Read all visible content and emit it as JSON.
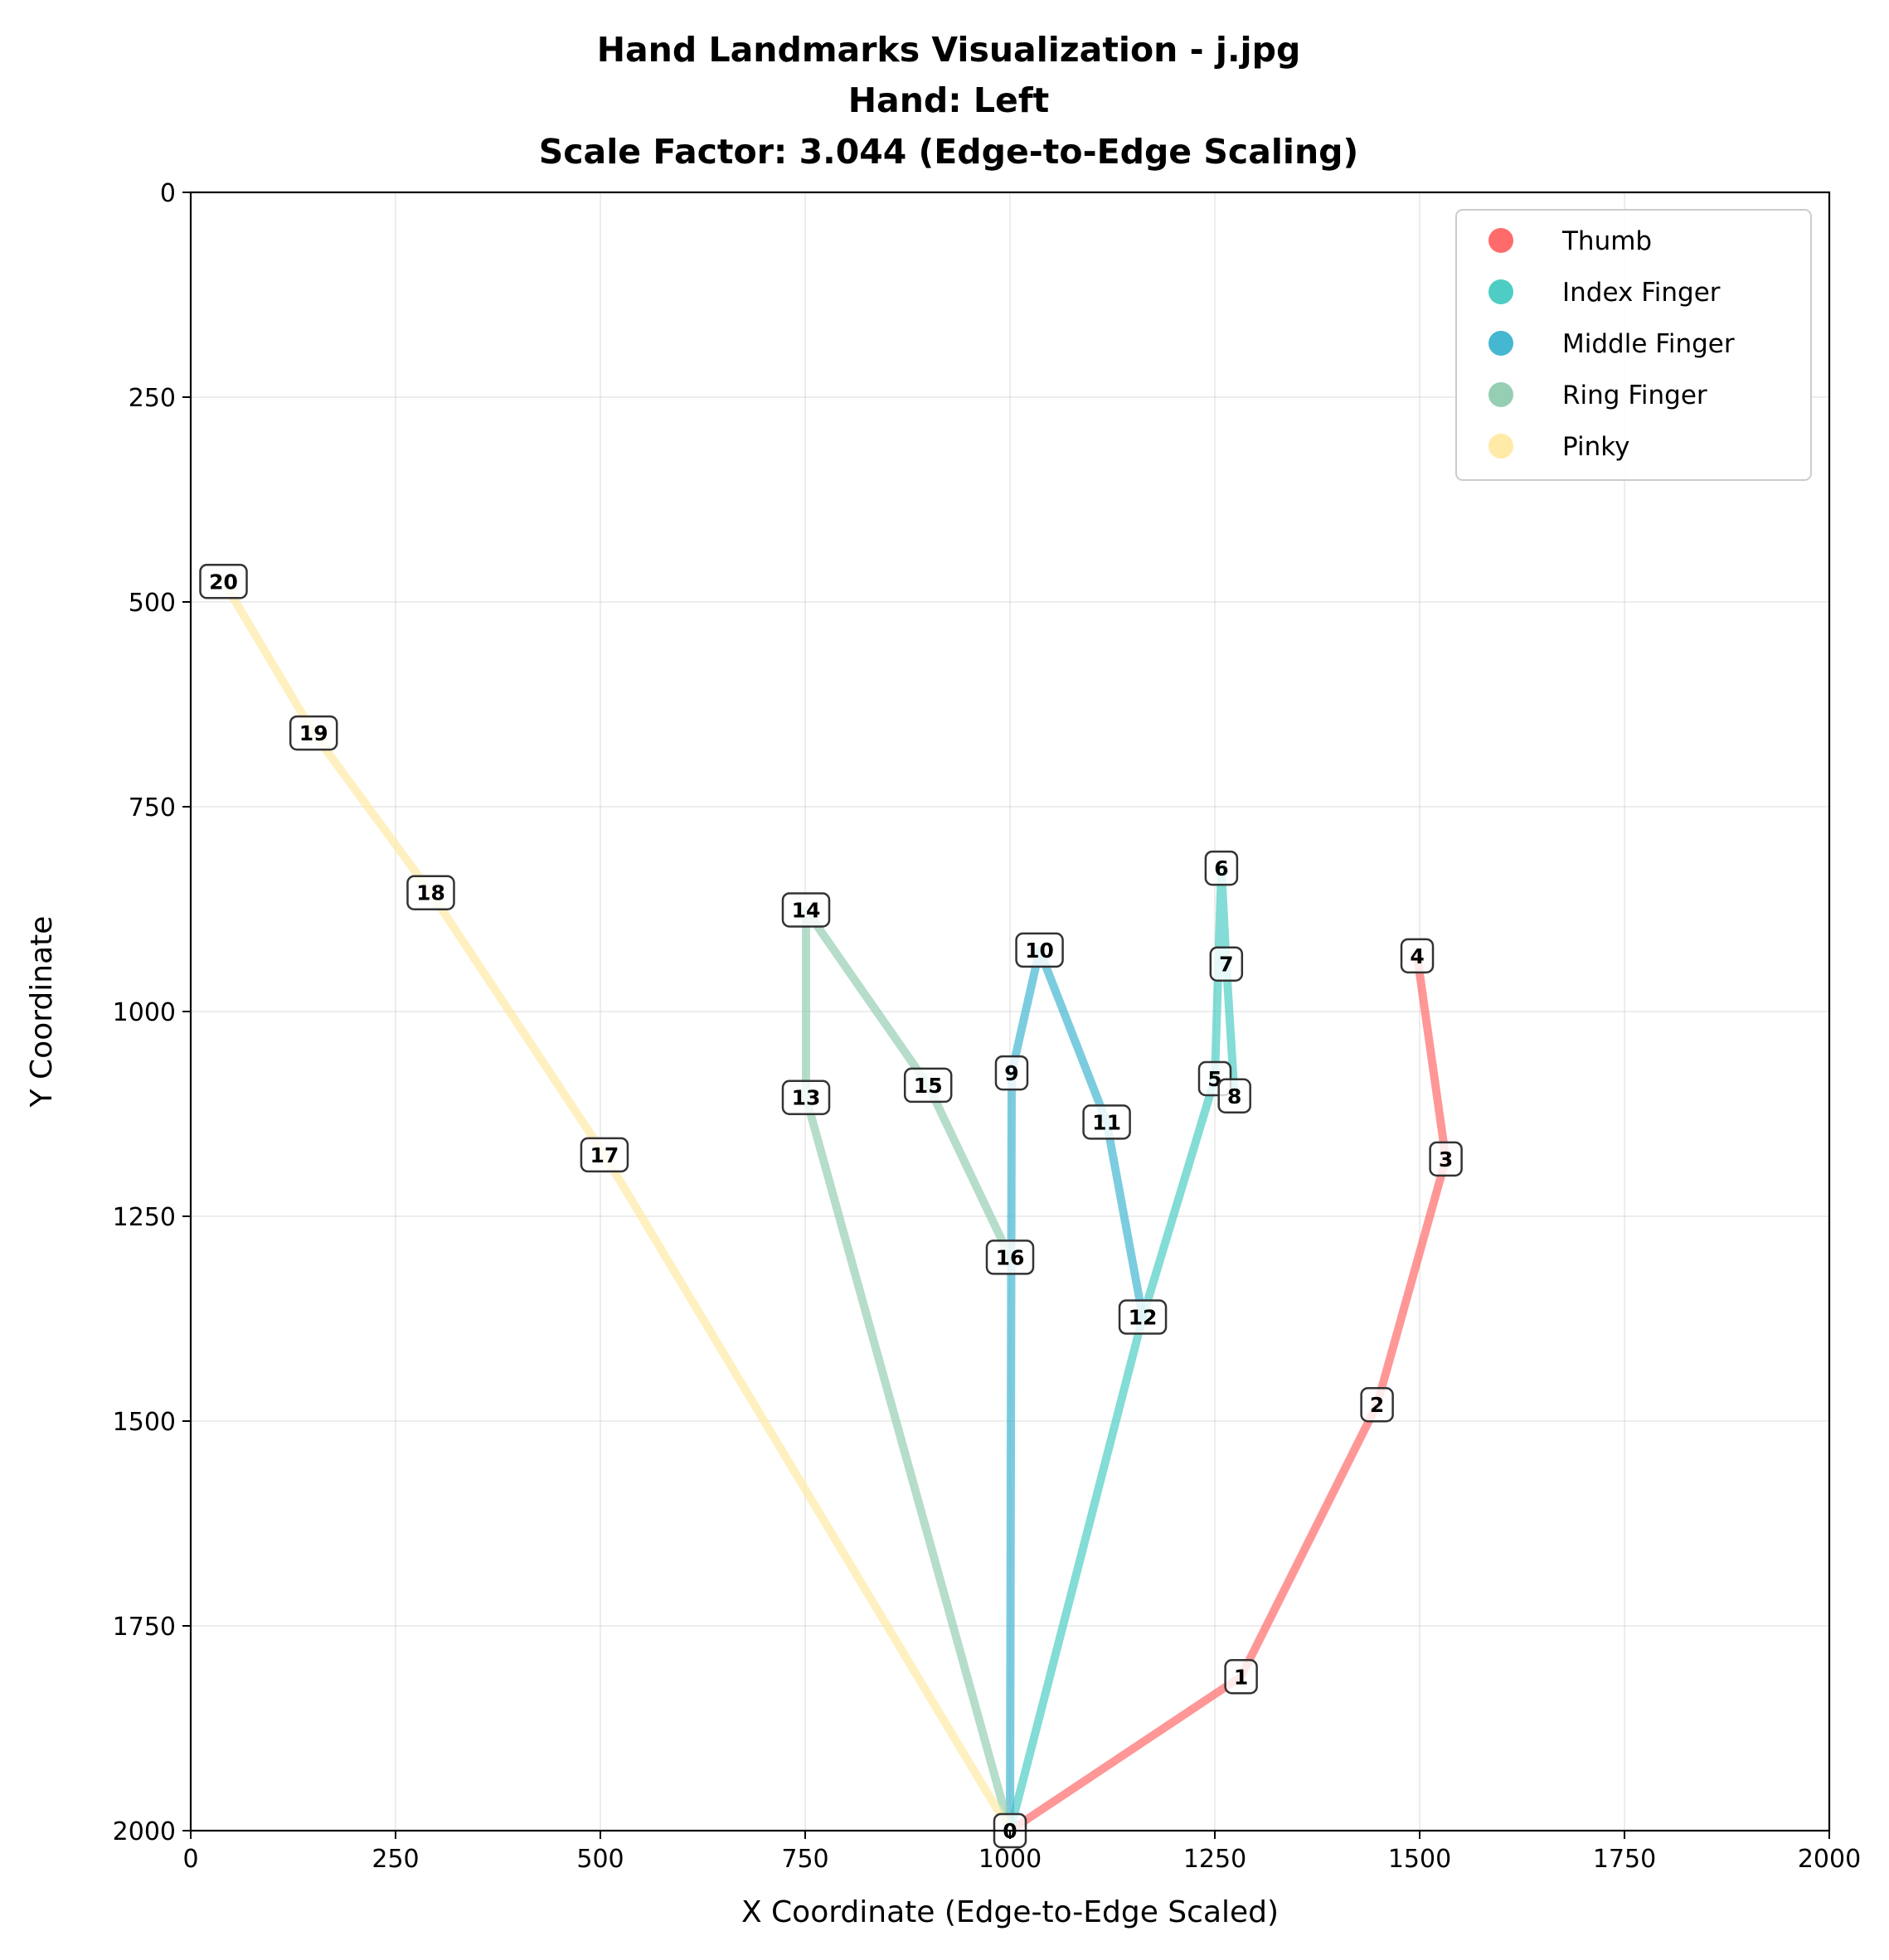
{
  "chart_data": {
    "type": "line",
    "title_lines": [
      "Hand Landmarks Visualization - j.jpg",
      "Hand: Left",
      "Scale Factor: 3.044 (Edge-to-Edge Scaling)"
    ],
    "xlabel": "X Coordinate (Edge-to-Edge Scaled)",
    "ylabel": "Y Coordinate",
    "xlim": [
      0,
      2000
    ],
    "ylim": [
      2000,
      0
    ],
    "y_inverted": true,
    "grid": true,
    "legend_position": "top-right",
    "xticks": [
      "0",
      "250",
      "500",
      "750",
      "1000",
      "1250",
      "1500",
      "1750",
      "2000"
    ],
    "yticks": [
      "0",
      "250",
      "500",
      "750",
      "1000",
      "1250",
      "1500",
      "1750",
      "2000"
    ],
    "landmarks": [
      {
        "id": "0",
        "x": 1000,
        "y": 2000
      },
      {
        "id": "1",
        "x": 1282,
        "y": 1812
      },
      {
        "id": "2",
        "x": 1448,
        "y": 1480
      },
      {
        "id": "3",
        "x": 1532,
        "y": 1180
      },
      {
        "id": "4",
        "x": 1497,
        "y": 932
      },
      {
        "id": "5",
        "x": 1250,
        "y": 1082
      },
      {
        "id": "6",
        "x": 1258,
        "y": 825
      },
      {
        "id": "7",
        "x": 1264,
        "y": 942
      },
      {
        "id": "8",
        "x": 1274,
        "y": 1103
      },
      {
        "id": "9",
        "x": 1002,
        "y": 1075
      },
      {
        "id": "10",
        "x": 1036,
        "y": 925
      },
      {
        "id": "11",
        "x": 1118,
        "y": 1135
      },
      {
        "id": "12",
        "x": 1162,
        "y": 1373
      },
      {
        "id": "13",
        "x": 751,
        "y": 1105
      },
      {
        "id": "14",
        "x": 751,
        "y": 876
      },
      {
        "id": "15",
        "x": 900,
        "y": 1090
      },
      {
        "id": "16",
        "x": 1000,
        "y": 1300
      },
      {
        "id": "17",
        "x": 505,
        "y": 1175
      },
      {
        "id": "18",
        "x": 293,
        "y": 855
      },
      {
        "id": "19",
        "x": 150,
        "y": 660
      },
      {
        "id": "20",
        "x": 40,
        "y": 475
      }
    ],
    "series": [
      {
        "name": "Thumb",
        "color": "#FF6B6B",
        "path": [
          0,
          1,
          2,
          3,
          4
        ]
      },
      {
        "name": "Index Finger",
        "color": "#4ECDC4",
        "path": [
          0,
          12,
          5,
          6,
          7,
          8
        ]
      },
      {
        "name": "Middle Finger",
        "color": "#45B7D1",
        "path": [
          0,
          9,
          10,
          11,
          12
        ]
      },
      {
        "name": "Ring Finger",
        "color": "#96CEB4",
        "path": [
          0,
          13,
          14,
          15,
          16
        ]
      },
      {
        "name": "Pinky",
        "color": "#FFEAA7",
        "path": [
          0,
          17,
          18,
          19,
          20
        ]
      }
    ]
  }
}
